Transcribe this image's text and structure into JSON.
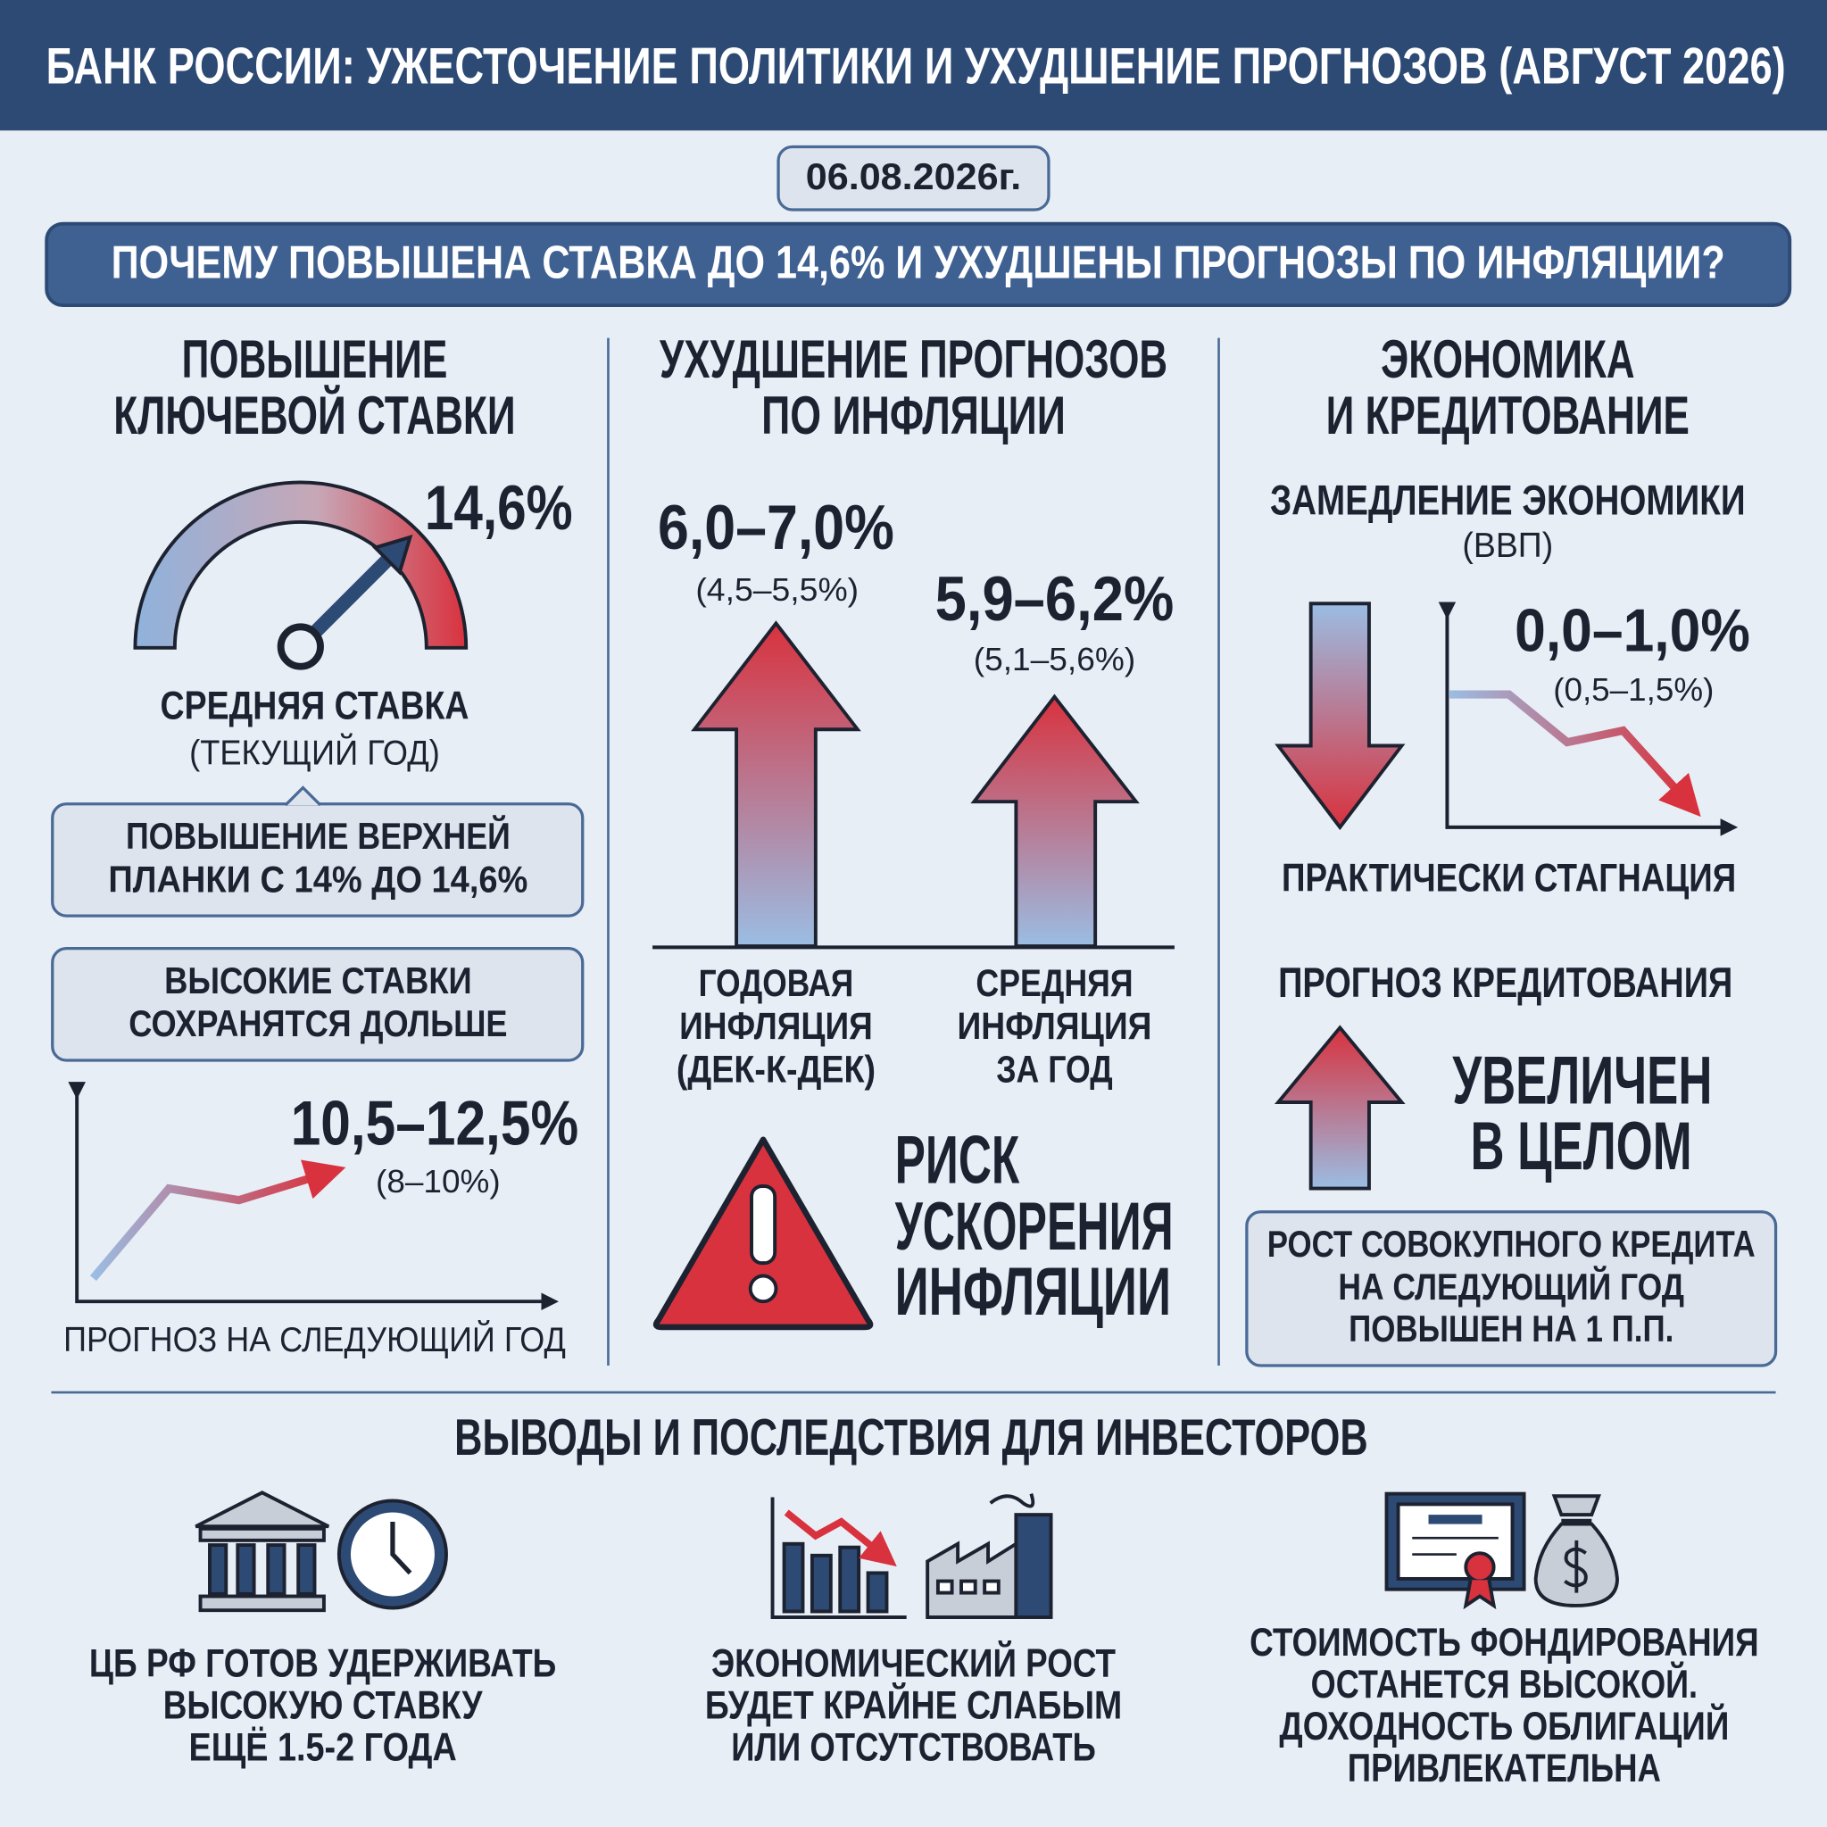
{
  "header": {
    "title": "БАНК РОССИИ: УЖЕСТОЧЕНИЕ ПОЛИТИКИ И УХУДШЕНИЕ ПРОГНОЗОВ (АВГУСТ 2026)",
    "date": "06.08.2026г.",
    "question": "ПОЧЕМУ ПОВЫШЕНА СТАВКА ДО 14,6% И УХУДШЕНЫ ПРОГНОЗЫ ПО ИНФЛЯЦИИ?"
  },
  "rate": {
    "title": [
      "ПОВЫШЕНИЕ",
      "КЛЮЧЕВОЙ СТАВКИ"
    ],
    "gauge_value": "14,6%",
    "gauge_label": "СРЕДНЯЯ СТАВКА",
    "gauge_sublabel": "(ТЕКУЩИЙ ГОД)",
    "box1": [
      "ПОВЫШЕНИЕ ВЕРХНЕЙ",
      "ПЛАНКИ С 14% ДО 14,6%"
    ],
    "box2": [
      "ВЫСОКИЕ СТАВКИ",
      "СОХРАНЯТСЯ ДОЛЬШЕ"
    ],
    "forecast_value": "10,5–12,5%",
    "forecast_prev": "(8–10%)",
    "forecast_label": "ПРОГНОЗ НА СЛЕДУЮЩИЙ ГОД"
  },
  "inflation": {
    "title": [
      "УХУДШЕНИЕ ПРОГНОЗОВ",
      "ПО ИНФЛЯЦИИ"
    ],
    "annual_value": "6,0–7,0%",
    "annual_prev": "(4,5–5,5%)",
    "annual_label": [
      "ГОДОВАЯ",
      "ИНФЛЯЦИЯ",
      "(ДЕК-К-ДЕК)"
    ],
    "average_value": "5,9–6,2%",
    "average_prev": "(5,1–5,6%)",
    "average_label": [
      "СРЕДНЯЯ",
      "ИНФЛЯЦИЯ",
      "ЗА ГОД"
    ],
    "risk": [
      "РИСК",
      "УСКОРЕНИЯ",
      "ИНФЛЯЦИИ"
    ]
  },
  "economy": {
    "title": [
      "ЭКОНОМИКА",
      "И КРЕДИТОВАНИЕ"
    ],
    "gdp_label": "ЗАМЕДЛЕНИЕ ЭКОНОМИКИ",
    "gdp_sublabel": "(ВВП)",
    "gdp_value": "0,0–1,0%",
    "gdp_prev": "(0,5–1,5%)",
    "gdp_note": "ПРАКТИЧЕСКИ СТАГНАЦИЯ",
    "credit_label": "ПРОГНОЗ КРЕДИТОВАНИЯ",
    "credit_value": [
      "УВЕЛИЧЕН",
      "В ЦЕЛОМ"
    ],
    "credit_box": [
      "РОСТ СОВОКУПНОГО КРЕДИТА",
      "НА СЛЕДУЮЩИЙ ГОД",
      "ПОВЫШЕН НА 1 П.П."
    ]
  },
  "conclusions": {
    "title": "ВЫВОДЫ И ПОСЛЕДСТВИЯ ДЛЯ ИНВЕСТОРОВ",
    "items": [
      [
        "ЦБ РФ ГОТОВ УДЕРЖИВАТЬ",
        "ВЫСОКУЮ СТАВКУ",
        "ЕЩЁ 1.5-2 ГОДА"
      ],
      [
        "ЭКОНОМИЧЕСКИЙ РОСТ",
        "БУДЕТ КРАЙНЕ СЛАБЫМ",
        "ИЛИ ОТСУТСТВОВАТЬ"
      ],
      [
        "СТОИМОСТЬ ФОНДИРОВАНИЯ",
        "ОСТАНЕТСЯ ВЫСОКОЙ.",
        "ДОХОДНОСТЬ ОБЛИГАЦИЙ",
        "ПРИВЛЕКАТЕЛЬНА"
      ]
    ]
  }
}
